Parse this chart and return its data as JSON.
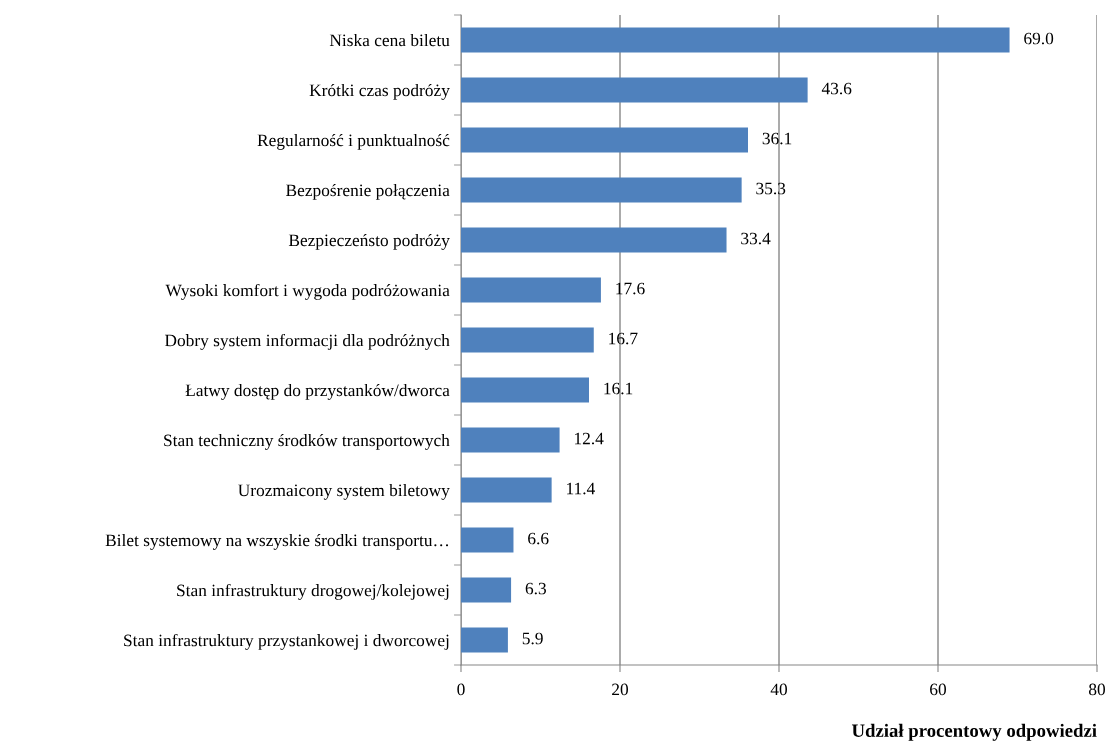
{
  "chart_data": {
    "type": "bar",
    "orientation": "horizontal",
    "xlabel": "Udział procentowy odpowiedzi",
    "categories": [
      "Niska cena biletu",
      "Krótki czas podróży",
      "Regularność i punktualność",
      "Bezpośrenie połączenia",
      "Bezpieczeństo podróży",
      "Wysoki komfort i wygoda podróżowania",
      "Dobry system informacji dla podróżnych",
      "Łatwy dostęp do przystanków/dworca",
      "Stan techniczny środków transportowych",
      "Urozmaicony system biletowy",
      "Bilet systemowy na wszyskie środki transportu…",
      "Stan infrastruktury drogowej/kolejowej",
      "Stan infrastruktury przystankowej i dworcowej"
    ],
    "values": [
      69.0,
      43.6,
      36.1,
      35.3,
      33.4,
      17.6,
      16.7,
      16.1,
      12.4,
      11.4,
      6.6,
      6.3,
      5.9
    ],
    "value_labels": [
      "69.0",
      "43.6",
      "36.1",
      "35.3",
      "33.4",
      "17.6",
      "16.7",
      "16.1",
      "12.4",
      "11.4",
      "6.6",
      "6.3",
      "5.9"
    ],
    "color": "#4f81bd",
    "xlim": [
      0,
      80
    ],
    "xticks": [
      0,
      20,
      40,
      60,
      80
    ],
    "grid": "x",
    "legend": false
  }
}
